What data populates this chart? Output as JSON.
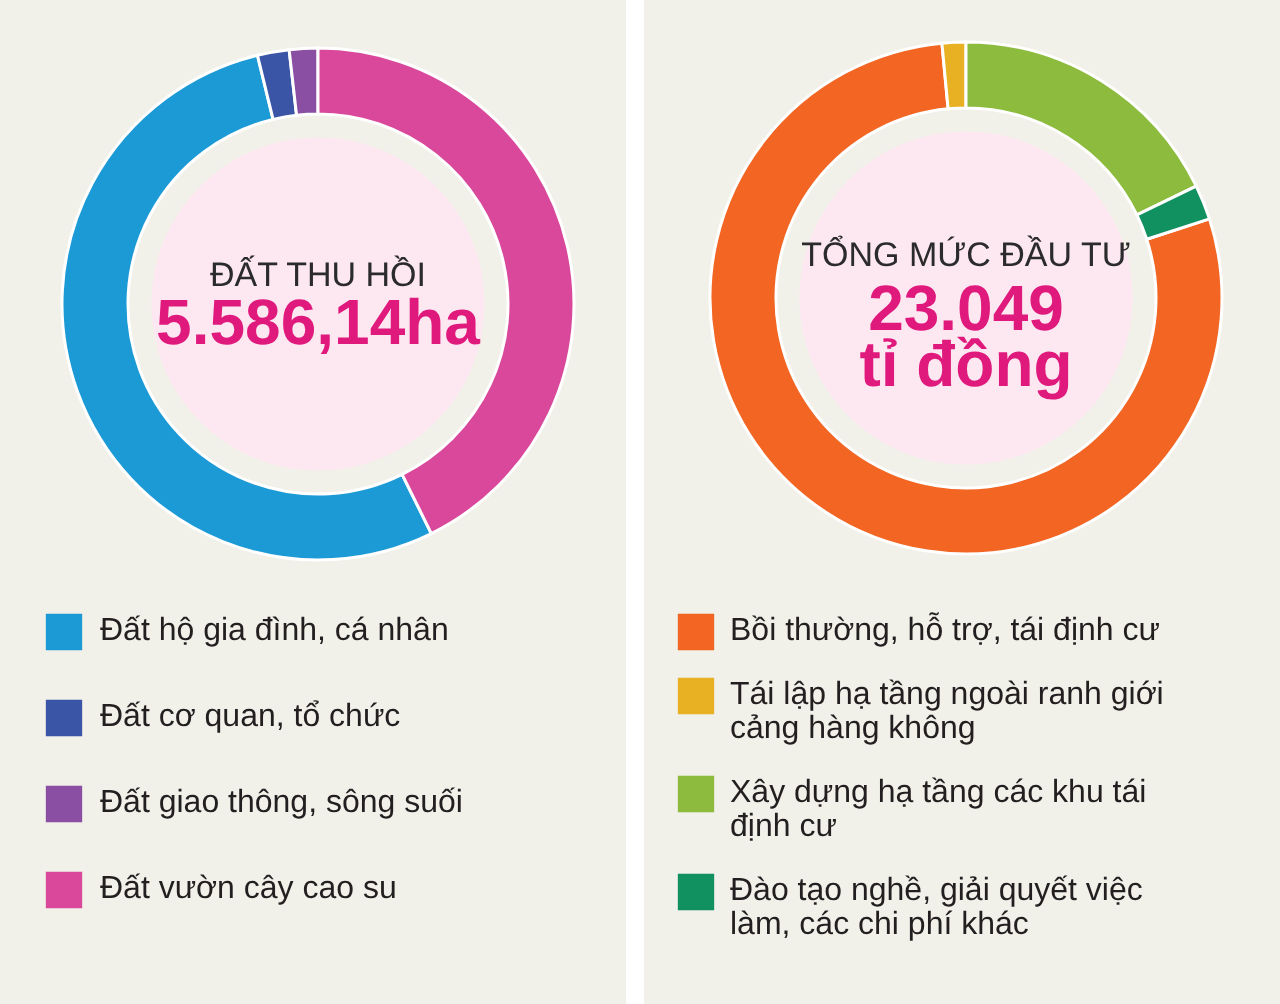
{
  "chart_data": [
    {
      "type": "donut",
      "title": "ĐẤT THU HỒI",
      "subtitle": "5.586,14ha",
      "categories": [
        "Đất hộ gia đình, cá nhân",
        "Đất cơ quan, tổ chức",
        "Đất giao thông, sông suối",
        "Đất vườn cây cao su"
      ],
      "values": [
        53.5,
        2.0,
        1.8,
        42.7
      ],
      "colors": [
        "#1b9ad6",
        "#3a55a6",
        "#8a4fa3",
        "#d9489a"
      ],
      "legend": "bottom"
    },
    {
      "type": "donut",
      "title": "TỔNG MỨC ĐẦU TƯ",
      "subtitle": "23.049 tỉ đồng",
      "categories": [
        "Bồi thường, hỗ trợ, tái định cư",
        "Tái lập hạ tầng ngoài ranh giới cảng hàng không",
        "Xây dựng hạ tầng các khu tái định cư",
        "Đào tạo nghề, giải quyết việc làm, các chi phí khác"
      ],
      "values": [
        78.5,
        1.5,
        17.8,
        2.2
      ],
      "colors": [
        "#f26522",
        "#e8b124",
        "#8dbb3e",
        "#119060"
      ],
      "legend": "bottom"
    }
  ]
}
